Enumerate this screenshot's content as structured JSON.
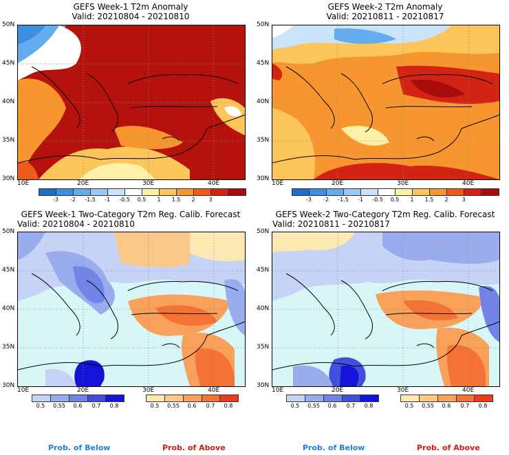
{
  "panels": [
    {
      "title": "GEFS Week-1 T2m Anomaly",
      "valid": "Valid: 20210804 - 20210810"
    },
    {
      "title": "GEFS Week-2 T2m Anomaly",
      "valid": "Valid: 20210811 - 20210817"
    },
    {
      "title": "GEFS Week-1 Two-Category T2m Reg. Calib. Forecast",
      "valid": "Valid: 20210804 - 20210810"
    },
    {
      "title": "GEFS Week-2 Two-Category T2m Reg. Calib. Forecast",
      "valid": "Valid: 20210811 - 20210817"
    }
  ],
  "lat_labels": [
    "50N",
    "45N",
    "40N",
    "35N",
    "30N"
  ],
  "lon_labels": [
    "10E",
    "20E",
    "30E",
    "40E"
  ],
  "anom_ticks": [
    "-3",
    "-2",
    "-1.5",
    "-1",
    "-0.5",
    "0.5",
    "1",
    "1.5",
    "2",
    "3"
  ],
  "anom_colors": [
    "#1e6fc8",
    "#3c8ee0",
    "#64acef",
    "#98c9f5",
    "#c9e4fa",
    "#ffffff",
    "#fff0a8",
    "#fcc55a",
    "#f7962f",
    "#ec5a1c",
    "#d32312",
    "#a80c0c"
  ],
  "prob_ticks": [
    "0.5",
    "0.55",
    "0.6",
    "0.7",
    "0.8"
  ],
  "below_colors": [
    "#c6d3f6",
    "#98acee",
    "#7083e6",
    "#3e50dc",
    "#1414d8"
  ],
  "above_colors": [
    "#fde8b2",
    "#fcc887",
    "#f9a15b",
    "#f57235",
    "#ee3c1a"
  ],
  "footer": {
    "below": "Prob. of Below",
    "above": "Prob. of Above"
  },
  "colors": {
    "below_text": "#1f7fe0",
    "above_text": "#d21a10",
    "sea": "#d6f6f8"
  }
}
